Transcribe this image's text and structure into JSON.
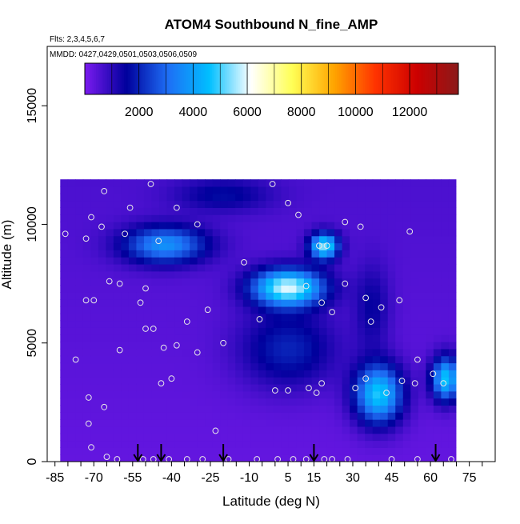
{
  "chart_data": {
    "type": "heatmap",
    "title": "ATOM4 Southbound N_fine_AMP",
    "subtitle_flights": "Flts: 2,3,4,5,6,7",
    "subtitle_dates": "MMDD: 0427,0429,0501,0503,0506,0509",
    "xlabel": "Latitude (deg N)",
    "ylabel": "Altitude (m)",
    "xlim": [
      -88,
      85
    ],
    "ylim": [
      0,
      17500
    ],
    "x_tick_labels": [
      "-85",
      "-70",
      "-55",
      "-40",
      "-25",
      "-10",
      "5",
      "15",
      "30",
      "45",
      "60",
      "75"
    ],
    "y_tick_labels": [
      "0",
      "5000",
      "10000",
      "15000"
    ],
    "colorbar": {
      "min": 0,
      "max": 13800,
      "tick_labels": [
        "2000",
        "4000",
        "6000",
        "8000",
        "10000",
        "12000"
      ],
      "colors": [
        "#7b1bf0",
        "#00009c",
        "#1e6ef5",
        "#00bfff",
        "#ffffff",
        "#ffff55",
        "#ffa500",
        "#ff3300",
        "#cc0000",
        "#8b1a1a"
      ]
    },
    "profile_arrows_lat": [
      -53,
      -44,
      -20,
      15,
      62
    ],
    "field_regions": [
      {
        "lat": [
          -60,
          -25
        ],
        "alt": [
          8300,
          10000
        ],
        "value": 3200
      },
      {
        "lat": [
          -10,
          20
        ],
        "alt": [
          6500,
          8200
        ],
        "value": 5400
      },
      {
        "lat": [
          13,
          25
        ],
        "alt": [
          8500,
          9700
        ],
        "value": 4800
      },
      {
        "lat": [
          30,
          50
        ],
        "alt": [
          1500,
          4200
        ],
        "value": 4400
      },
      {
        "lat": [
          60,
          72
        ],
        "alt": [
          2500,
          4500
        ],
        "value": 4300
      },
      {
        "lat": [
          -40,
          0
        ],
        "alt": [
          10500,
          12000
        ],
        "value": 1100
      },
      {
        "lat": [
          -15,
          25
        ],
        "alt": [
          3000,
          6500
        ],
        "value": 1600
      },
      {
        "lat": [
          30,
          45
        ],
        "alt": [
          4500,
          8500
        ],
        "value": 1000
      }
    ],
    "sample_points": [
      [
        -71,
        10300
      ],
      [
        -66,
        11400
      ],
      [
        -73,
        9400
      ],
      [
        -67,
        9900
      ],
      [
        -58,
        9600
      ],
      [
        -56,
        10700
      ],
      [
        -45,
        9300
      ],
      [
        -38,
        10700
      ],
      [
        -30,
        10000
      ],
      [
        -64,
        7600
      ],
      [
        -70,
        6800
      ],
      [
        -60,
        7500
      ],
      [
        -50,
        7300
      ],
      [
        -52,
        6700
      ],
      [
        -50,
        5600
      ],
      [
        -34,
        5900
      ],
      [
        -26,
        6400
      ],
      [
        -47,
        5600
      ],
      [
        -73,
        6800
      ],
      [
        -60,
        4700
      ],
      [
        -43,
        4800
      ],
      [
        -38,
        4900
      ],
      [
        -30,
        4600
      ],
      [
        -20,
        5000
      ],
      [
        -72,
        2700
      ],
      [
        -77,
        4300
      ],
      [
        -44,
        3300
      ],
      [
        -40,
        3500
      ],
      [
        -66,
        2300
      ],
      [
        -72,
        1600
      ],
      [
        -23,
        1300
      ],
      [
        -6,
        6000
      ],
      [
        12,
        7400
      ],
      [
        18,
        6700
      ],
      [
        22,
        6300
      ],
      [
        27,
        7500
      ],
      [
        35,
        6900
      ],
      [
        37,
        5900
      ],
      [
        41,
        6500
      ],
      [
        48,
        6800
      ],
      [
        55,
        4300
      ],
      [
        61,
        3700
      ],
      [
        65,
        3300
      ],
      [
        35,
        3500
      ],
      [
        31,
        3100
      ],
      [
        43,
        2900
      ],
      [
        49,
        3400
      ],
      [
        54,
        3300
      ],
      [
        0,
        3000
      ],
      [
        5,
        3000
      ],
      [
        13,
        3100
      ],
      [
        16,
        2900
      ],
      [
        18,
        3300
      ],
      [
        -12,
        8400
      ],
      [
        -1,
        11700
      ],
      [
        5,
        10900
      ],
      [
        9,
        10400
      ],
      [
        17,
        9100
      ],
      [
        20,
        9100
      ],
      [
        27,
        10100
      ],
      [
        33,
        9900
      ],
      [
        52,
        9700
      ],
      [
        -48,
        11700
      ],
      [
        -71,
        600
      ],
      [
        -65,
        200
      ],
      [
        -61,
        100
      ],
      [
        -51,
        100
      ],
      [
        -47,
        100
      ],
      [
        -41,
        100
      ],
      [
        -34,
        100
      ],
      [
        -28,
        100
      ],
      [
        -18,
        100
      ],
      [
        -7,
        100
      ],
      [
        1,
        100
      ],
      [
        7,
        100
      ],
      [
        12,
        100
      ],
      [
        19,
        100
      ],
      [
        22,
        100
      ],
      [
        28,
        100
      ],
      [
        45,
        100
      ],
      [
        55,
        100
      ],
      [
        68,
        100
      ],
      [
        -81,
        9600
      ]
    ]
  }
}
